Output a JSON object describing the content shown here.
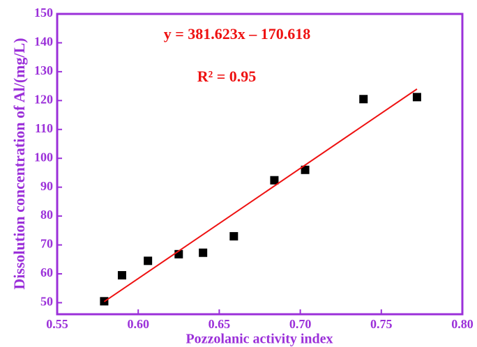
{
  "chart_data": {
    "type": "scatter",
    "x_label": "Pozzolanic activity index",
    "y_label": "Dissolution concentration of Al/(mg/L)",
    "annotations": [
      "y = 381.623x – 170.618",
      "R² = 0.95"
    ],
    "axis_color": "#9b30d9",
    "series": [
      {
        "color": "#000000",
        "x": [
          0.579,
          0.59,
          0.606,
          0.625,
          0.64,
          0.659,
          0.684,
          0.703,
          0.739,
          0.772
        ],
        "values": [
          50.5,
          59.5,
          64.5,
          66.8,
          67.3,
          73.0,
          92.4,
          96.0,
          120.5,
          121.2
        ]
      },
      {
        "type": "line",
        "color": "#ee1111",
        "x": [
          0.579,
          0.772
        ],
        "values": [
          50.35,
          124.0
        ]
      }
    ],
    "xlim": [
      0.55,
      0.8
    ],
    "xticks": [
      {
        "value": 0.55,
        "label": "0.55"
      },
      {
        "value": 0.6,
        "label": "0.60"
      },
      {
        "value": 0.65,
        "label": "0.65"
      },
      {
        "value": 0.7,
        "label": "0.70"
      },
      {
        "value": 0.75,
        "label": "0.75"
      },
      {
        "value": 0.8,
        "label": "0.80"
      }
    ],
    "ylim": [
      46,
      150
    ],
    "yticks": [
      50,
      60,
      70,
      80,
      90,
      100,
      110,
      120,
      130,
      140,
      150
    ]
  }
}
